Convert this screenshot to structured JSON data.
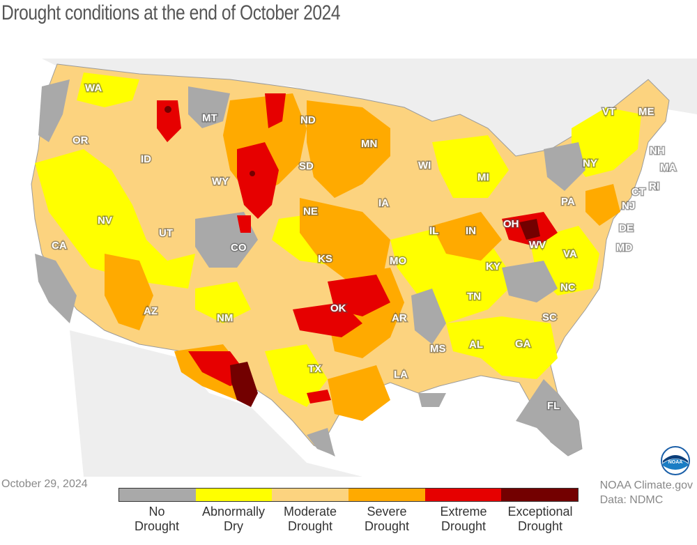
{
  "title": "Drought conditions at the end of October 2024",
  "date": "October 29, 2024",
  "credit": {
    "line1": "NOAA Climate.gov",
    "line2": "Data: NDMC"
  },
  "legend": [
    {
      "line1": "No",
      "line2": "Drought",
      "color": "#a9a9a9"
    },
    {
      "line1": "Abnormally",
      "line2": "Dry",
      "color": "#ffff00"
    },
    {
      "line1": "Moderate",
      "line2": "Drought",
      "color": "#fcd37f"
    },
    {
      "line1": "Severe",
      "line2": "Drought",
      "color": "#ffaa00"
    },
    {
      "line1": "Extreme",
      "line2": "Drought",
      "color": "#e60000"
    },
    {
      "line1": "Exceptional",
      "line2": "Drought",
      "color": "#730000"
    }
  ],
  "states": {
    "WA": "WA",
    "OR": "OR",
    "CA": "CA",
    "NV": "NV",
    "ID": "ID",
    "MT": "MT",
    "WY": "WY",
    "UT": "UT",
    "AZ": "AZ",
    "CO": "CO",
    "NM": "NM",
    "ND": "ND",
    "SD": "SD",
    "NE": "NE",
    "KS": "KS",
    "OK": "OK",
    "TX": "TX",
    "MN": "MN",
    "IA": "IA",
    "MO": "MO",
    "AR": "AR",
    "LA": "LA",
    "WI": "WI",
    "IL": "IL",
    "MI": "MI",
    "IN": "IN",
    "OH": "OH",
    "KY": "KY",
    "TN": "TN",
    "MS": "MS",
    "AL": "AL",
    "GA": "GA",
    "FL": "FL",
    "SC": "SC",
    "NC": "NC",
    "VA": "VA",
    "WV": "WV",
    "PA": "PA",
    "NY": "NY",
    "VT": "VT",
    "ME": "ME",
    "NH": "NH",
    "MA": "MA",
    "RI": "RI",
    "CT": "CT",
    "NJ": "NJ",
    "DE": "DE",
    "MD": "MD"
  },
  "logo_text": "NOAA"
}
